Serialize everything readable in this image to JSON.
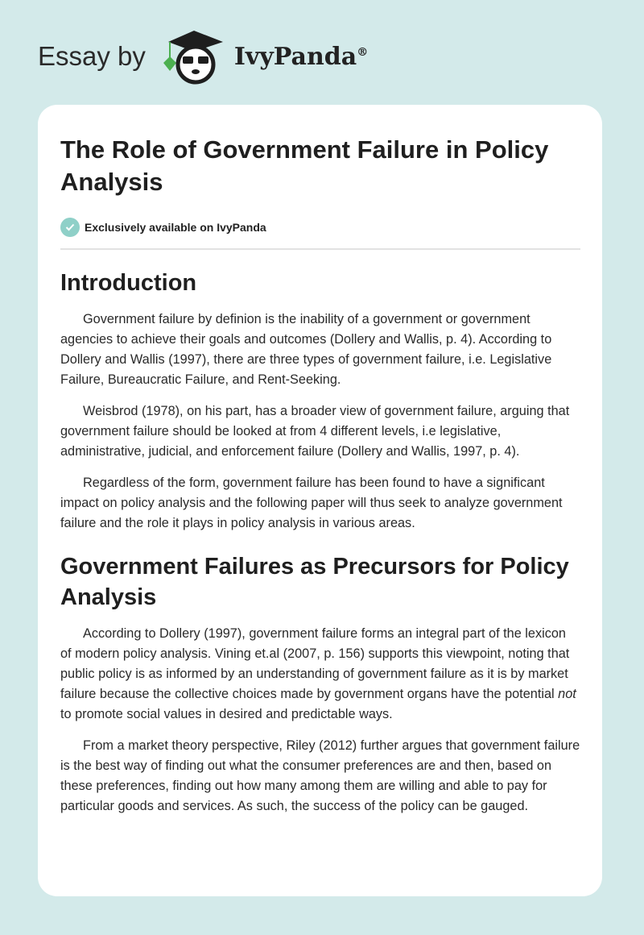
{
  "header": {
    "prefix": "Essay by",
    "brand": "IvyPanda",
    "registered": "®"
  },
  "article": {
    "title": "The Role of Government Failure in Policy Analysis",
    "badge": "Exclusively available on IvyPanda",
    "sections": [
      {
        "heading": "Introduction",
        "paragraphs": [
          "Government failure by definion is the inability of a government or government agencies to achieve their goals and outcomes (Dollery and Wallis, p. 4). According to Dollery and Wallis (1997), there are three types of government failure, i.e. Legislative Failure, Bureaucratic Failure, and Rent-Seeking.",
          "Weisbrod (1978), on his part, has a broader view of government failure, arguing that government failure should be looked at from 4 different levels, i.e legislative, administrative, judicial, and enforcement failure (Dollery and Wallis, 1997, p. 4).",
          "Regardless of the form, government failure has been found to have a significant impact on policy analysis and the following paper will thus seek to analyze government failure and the role it plays in policy analysis in various areas."
        ]
      },
      {
        "heading": "Government Failures as Precursors for Policy Analysis",
        "paragraphs": [
          {
            "before": "According to Dollery (1997), government failure forms an integral part of the lexicon of modern policy analysis. Vining et.al (2007, p. 156) supports this viewpoint, noting that public policy is as informed by an understanding of government failure as it is by market failure because the collective choices made by government organs have the potential ",
            "em": "not",
            "after": " to promote social values in desired and predictable ways."
          },
          "From a market theory perspective, Riley (2012) further argues that government failure is the best way of finding out what the consumer preferences are and then, based on these preferences, finding out how many among them are willing and able to pay for particular goods and services. As such, the success of the policy can be gauged."
        ]
      }
    ]
  }
}
